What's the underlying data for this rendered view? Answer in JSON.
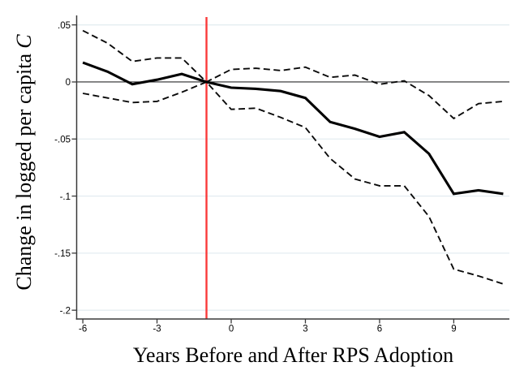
{
  "figure": {
    "y_title": "Change in logged per capita",
    "y_title_italic_suffix": "C",
    "x_title": "Years Before and After RPS Adoption"
  },
  "chart_data": {
    "type": "line",
    "title": "",
    "xlabel": "Years Before and After RPS Adoption",
    "ylabel": "Change in logged per capita C",
    "x": [
      -6,
      -5,
      -4,
      -3,
      -2,
      -1,
      0,
      1,
      2,
      3,
      4,
      5,
      6,
      7,
      8,
      9,
      10,
      11
    ],
    "series": [
      {
        "name": "ci-upper-dashed",
        "style": "dashed",
        "color": "#0a0a0a",
        "width": 1.9,
        "values": [
          0.045,
          0.034,
          0.018,
          0.021,
          0.021,
          0.0,
          0.011,
          0.012,
          0.01,
          0.013,
          0.004,
          0.006,
          -0.002,
          0.001,
          -0.012,
          -0.032,
          -0.019,
          -0.017
        ]
      },
      {
        "name": "ci-lower-dashed",
        "style": "dashed",
        "color": "#0a0a0a",
        "width": 1.9,
        "values": [
          -0.01,
          -0.014,
          -0.018,
          -0.017,
          -0.009,
          0.0,
          -0.024,
          -0.023,
          -0.031,
          -0.04,
          -0.067,
          -0.085,
          -0.091,
          -0.091,
          -0.118,
          -0.164,
          -0.17,
          -0.177
        ]
      },
      {
        "name": "point-estimate-solid",
        "style": "solid",
        "color": "#000000",
        "width": 3.1,
        "values": [
          0.017,
          0.009,
          -0.002,
          0.002,
          0.007,
          0.0,
          -0.005,
          -0.006,
          -0.008,
          -0.014,
          -0.035,
          -0.041,
          -0.048,
          -0.044,
          -0.063,
          -0.098,
          -0.095,
          -0.098
        ]
      }
    ],
    "x_ticks": [
      -6,
      -3,
      0,
      3,
      6,
      9
    ],
    "x_tick_labels": [
      "-6",
      "-3",
      "0",
      "3",
      "6",
      "9"
    ],
    "y_ticks": [
      0.05,
      0,
      -0.05,
      -0.1,
      -0.15,
      -0.2
    ],
    "y_tick_labels": [
      ".05",
      "0",
      "-.05",
      "-.1",
      "-.15",
      "-.2"
    ],
    "x_range": [
      -6.25,
      11.25
    ],
    "y_range": [
      -0.2077,
      0.0583
    ],
    "reference_line_x": -1,
    "zero_line_y": 0,
    "grid": true,
    "legend": "none",
    "colors": {
      "reference_line": "#fa3a3a",
      "grid": "#e4edf1",
      "axis": "#3a3a3a",
      "zero_line": "#2e2e2e",
      "tick_text": "#000000"
    }
  }
}
